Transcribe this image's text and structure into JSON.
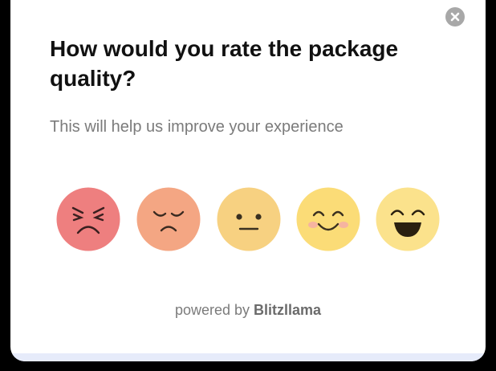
{
  "header": {
    "title": "How would you rate the package quality?",
    "subtitle": "This will help us improve your experience"
  },
  "footer": {
    "prefix": "powered by",
    "brand": "Blitzllama"
  }
}
